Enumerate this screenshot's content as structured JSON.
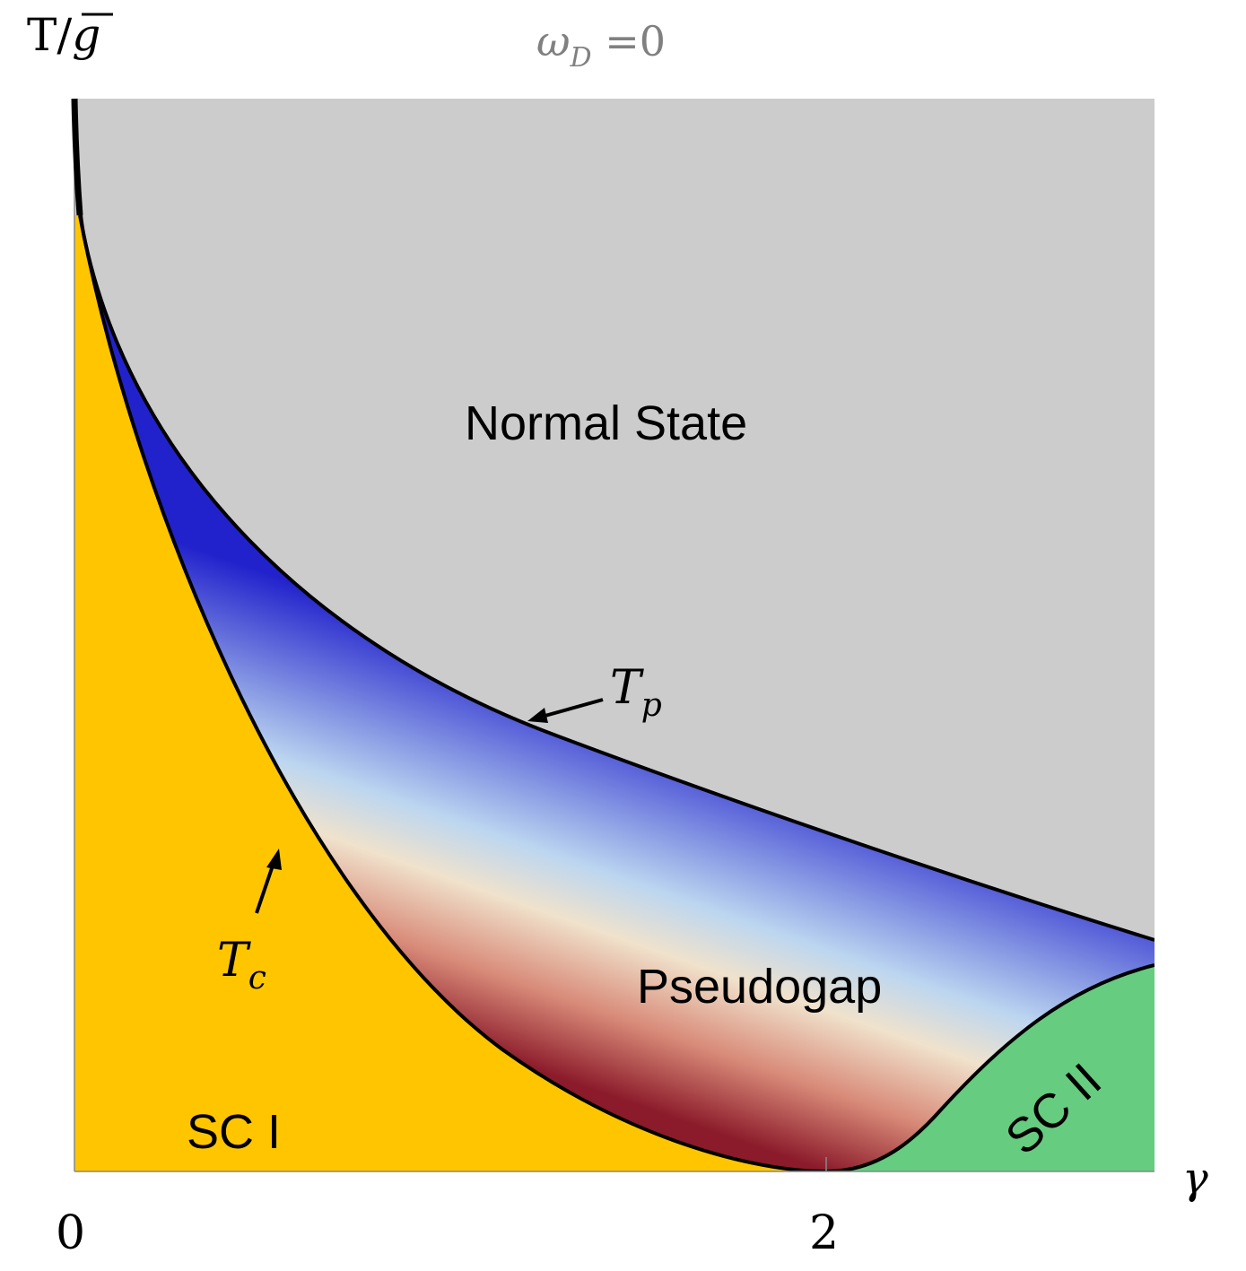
{
  "title": {
    "prefix": "ω",
    "subscript": "D",
    "suffix": " =0",
    "color": "#808080"
  },
  "y_axis_label": {
    "main": "T/",
    "overbar": "g"
  },
  "x_axis_label": "γ",
  "x_ticks": [
    "0",
    "2"
  ],
  "regions": {
    "normal_state": {
      "label": "Normal State",
      "color": "#cccccc"
    },
    "pseudogap": {
      "label": "Pseudogap",
      "gradient_top": "#2222cc",
      "gradient_mid": "#f0e2cc",
      "gradient_bottom": "#8b1a2a"
    },
    "sc1": {
      "label": "SC I",
      "color": "#ffc600"
    },
    "sc2": {
      "label": "SC II",
      "color": "#66cc80"
    }
  },
  "curves": {
    "tp": {
      "label": "T",
      "subscript": "p"
    },
    "tc": {
      "label": "T",
      "subscript": "c"
    }
  }
}
